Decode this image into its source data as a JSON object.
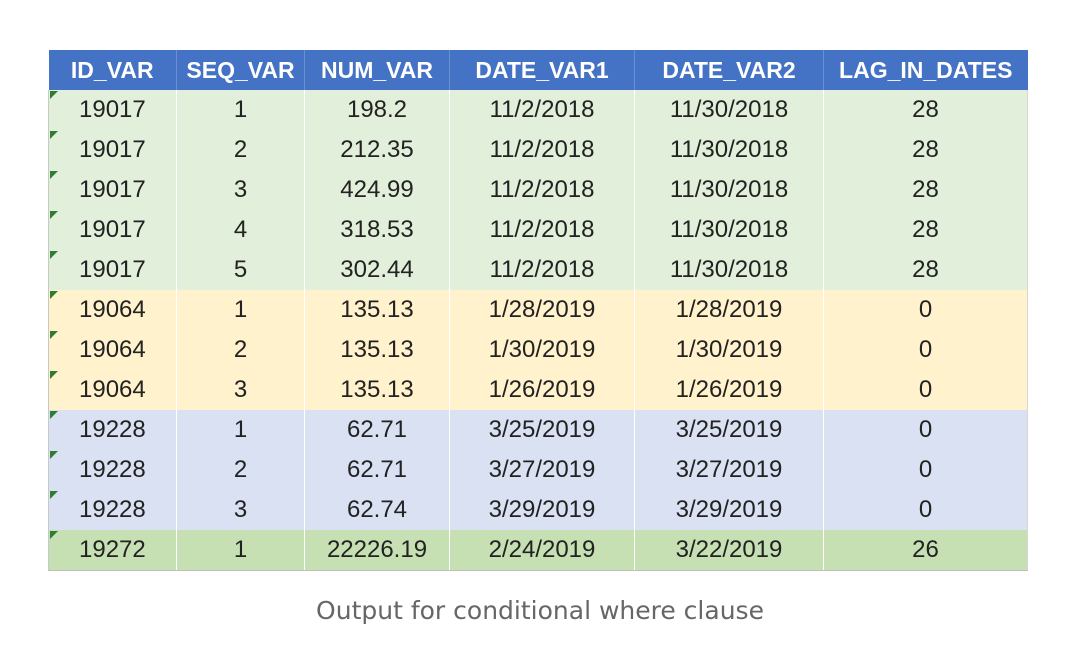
{
  "table": {
    "headers": [
      "ID_VAR",
      "SEQ_VAR",
      "NUM_VAR",
      "DATE_VAR1",
      "DATE_VAR2",
      "LAG_IN_DATES"
    ],
    "rows": [
      {
        "group": "green",
        "cells": [
          "19017",
          "1",
          "198.2",
          "11/2/2018",
          "11/30/2018",
          "28"
        ]
      },
      {
        "group": "green",
        "cells": [
          "19017",
          "2",
          "212.35",
          "11/2/2018",
          "11/30/2018",
          "28"
        ]
      },
      {
        "group": "green",
        "cells": [
          "19017",
          "3",
          "424.99",
          "11/2/2018",
          "11/30/2018",
          "28"
        ]
      },
      {
        "group": "green",
        "cells": [
          "19017",
          "4",
          "318.53",
          "11/2/2018",
          "11/30/2018",
          "28"
        ]
      },
      {
        "group": "green",
        "cells": [
          "19017",
          "5",
          "302.44",
          "11/2/2018",
          "11/30/2018",
          "28"
        ]
      },
      {
        "group": "yellow",
        "cells": [
          "19064",
          "1",
          "135.13",
          "1/28/2019",
          "1/28/2019",
          "0"
        ]
      },
      {
        "group": "yellow",
        "cells": [
          "19064",
          "2",
          "135.13",
          "1/30/2019",
          "1/30/2019",
          "0"
        ]
      },
      {
        "group": "yellow",
        "cells": [
          "19064",
          "3",
          "135.13",
          "1/26/2019",
          "1/26/2019",
          "0"
        ]
      },
      {
        "group": "blue",
        "cells": [
          "19228",
          "1",
          "62.71",
          "3/25/2019",
          "3/25/2019",
          "0"
        ]
      },
      {
        "group": "blue",
        "cells": [
          "19228",
          "2",
          "62.71",
          "3/27/2019",
          "3/27/2019",
          "0"
        ]
      },
      {
        "group": "blue",
        "cells": [
          "19228",
          "3",
          "62.74",
          "3/29/2019",
          "3/29/2019",
          "0"
        ]
      },
      {
        "group": "olive",
        "cells": [
          "19272",
          "1",
          "22226.19",
          "2/24/2019",
          "3/22/2019",
          "26"
        ]
      }
    ]
  },
  "caption": "Output for conditional where clause",
  "colors": {
    "header_bg": "#4472c4",
    "header_text": "#ffffff",
    "green": "#e2efda",
    "yellow": "#fff2cc",
    "blue": "#d9e1f2",
    "olive": "#c6e0b4",
    "error_flag": "#2e7d32"
  }
}
